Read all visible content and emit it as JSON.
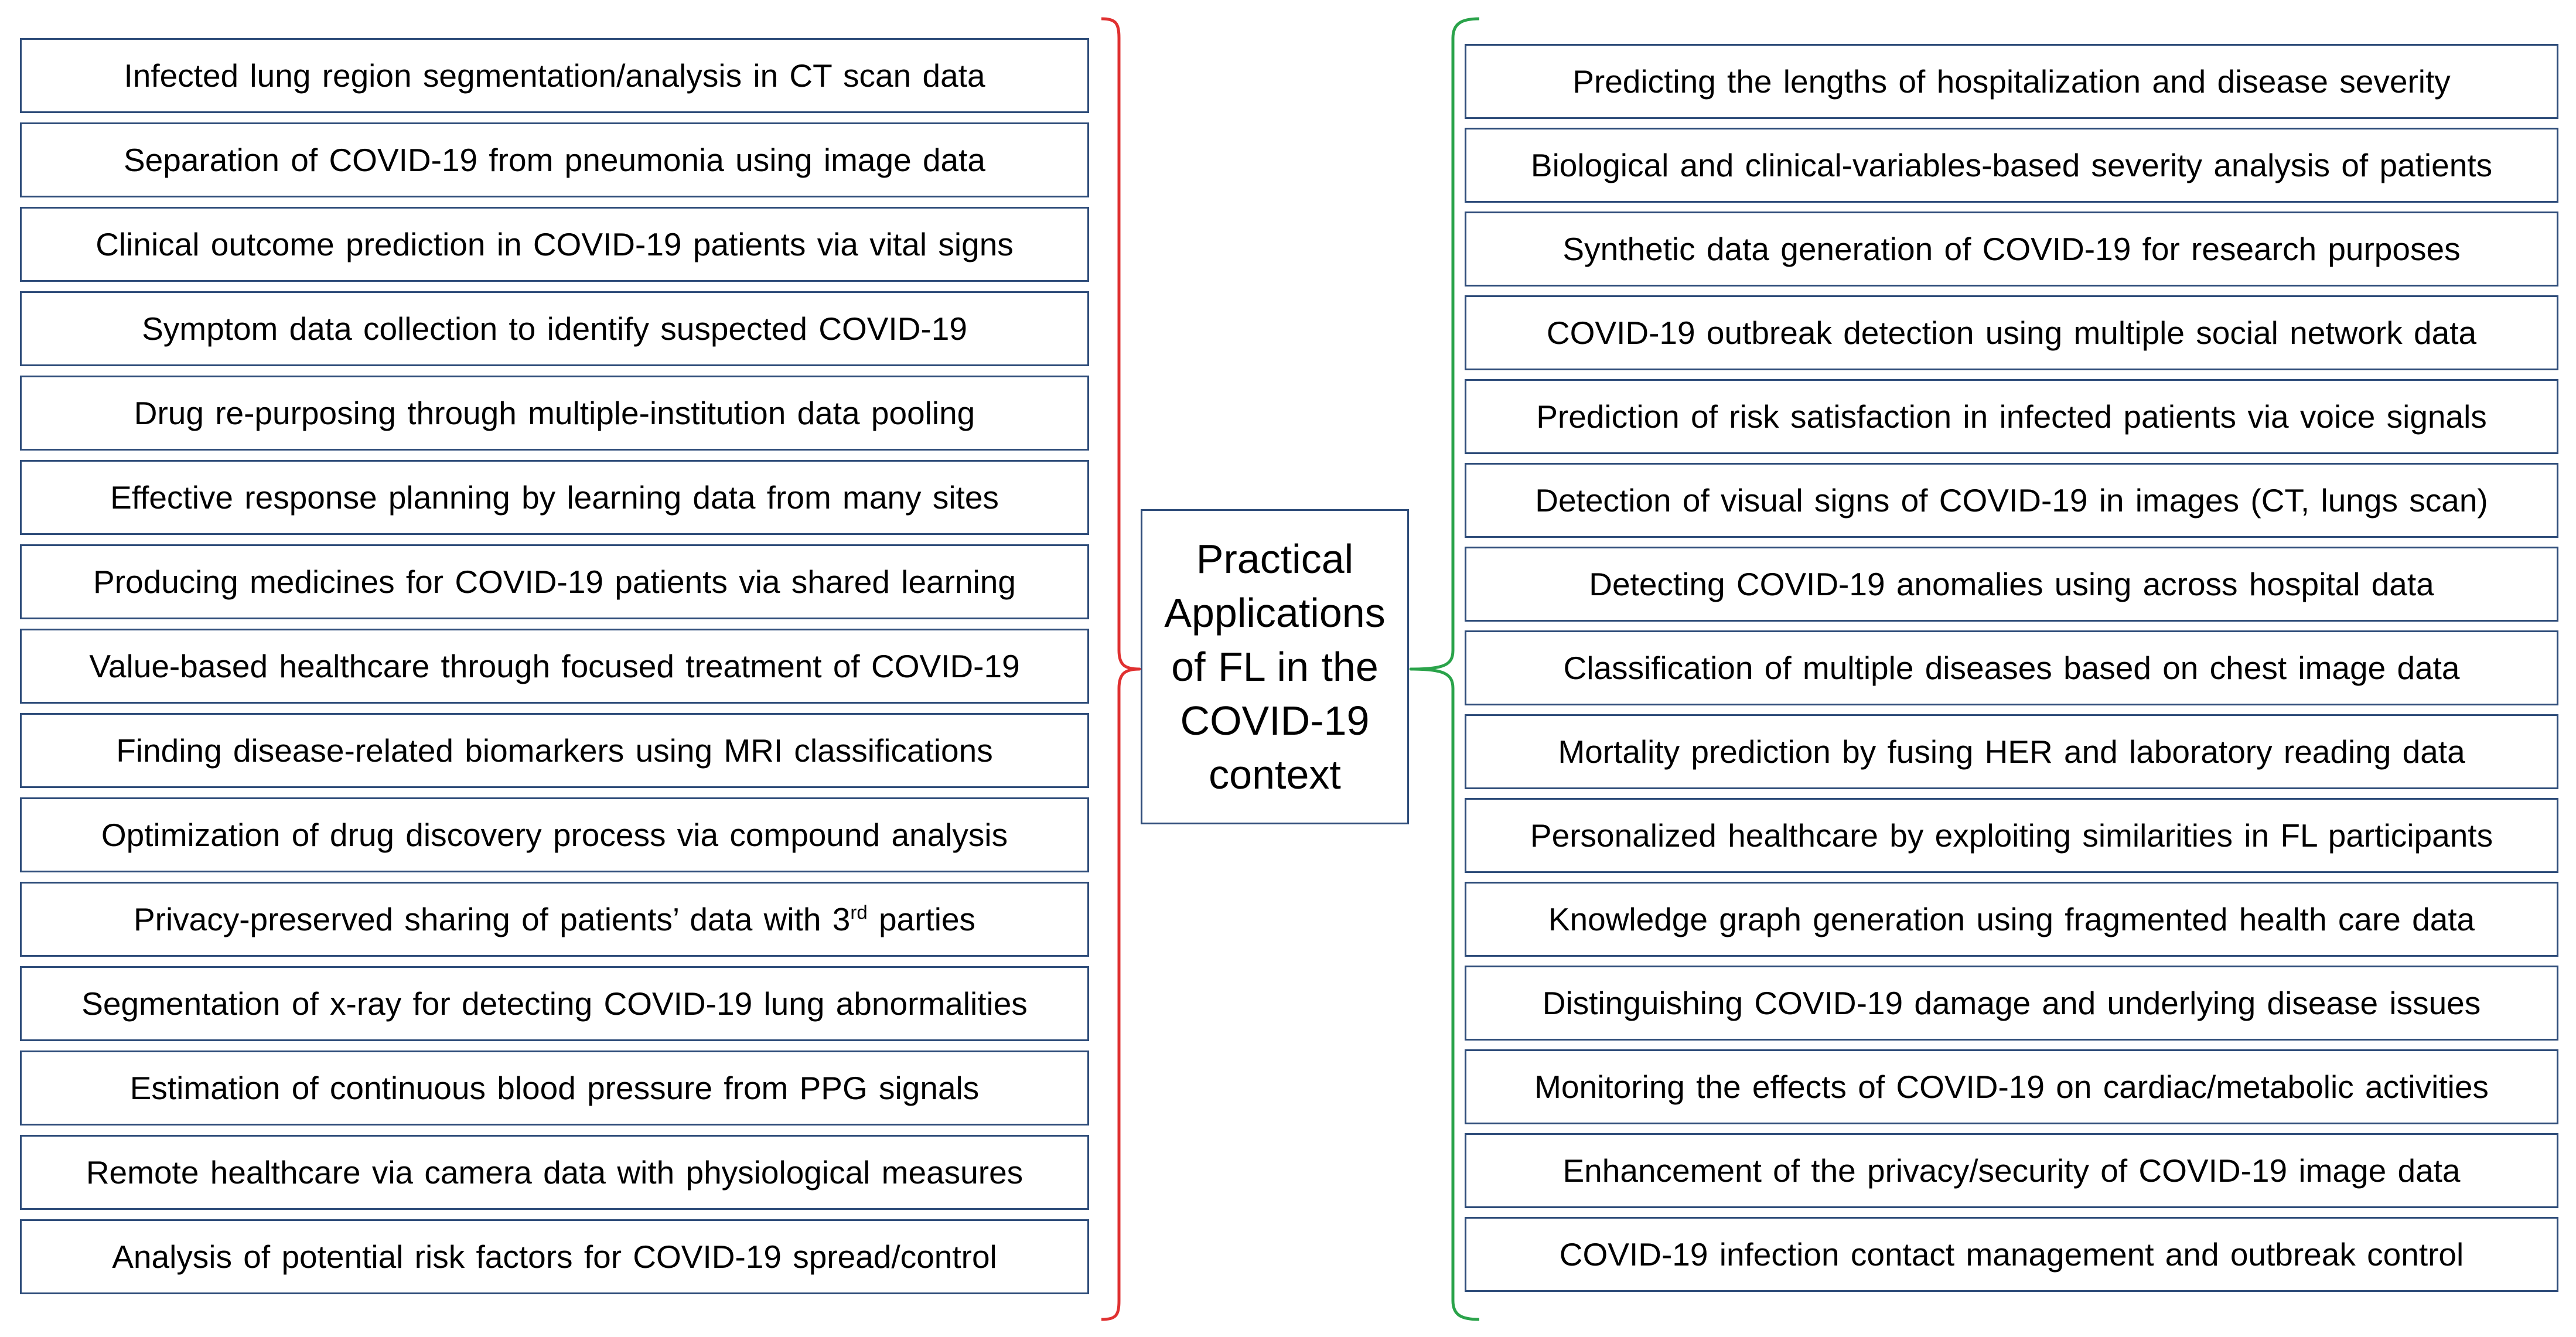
{
  "center": {
    "label": "Practical\nApplications\nof FL in the\nCOVID-19\ncontext"
  },
  "left_items": [
    "Infected lung region segmentation/analysis in CT scan data",
    "Separation of COVID-19 from pneumonia using image data",
    "Clinical outcome prediction in COVID-19 patients via vital signs",
    "Symptom data collection to identify suspected COVID-19",
    "Drug re-purposing through multiple-institution data pooling",
    "Effective response planning by learning data from many sites",
    "Producing medicines for COVID-19 patients via shared learning",
    "Value-based healthcare through focused treatment of COVID-19",
    "Finding disease-related biomarkers using MRI classifications",
    "Optimization of drug discovery process via compound analysis",
    "Privacy-preserved sharing of patients’ data with 3rd parties",
    "Segmentation of x-ray for detecting COVID-19 lung abnormalities",
    "Estimation of continuous blood pressure from PPG signals",
    "Remote healthcare via camera data with physiological measures",
    "Analysis of potential risk factors for COVID-19 spread/control"
  ],
  "privacy_item": {
    "prefix": "Privacy-preserved sharing of patients’ data with 3",
    "superscript": "rd",
    "suffix": " parties"
  },
  "right_items": [
    "Predicting the lengths of hospitalization and disease severity",
    "Biological and clinical-variables-based severity analysis of patients",
    "Synthetic data generation of COVID-19 for research purposes",
    "COVID-19 outbreak detection using multiple social network data",
    "Prediction of risk satisfaction in infected patients via voice signals",
    "Detection of visual signs of COVID-19 in images (CT, lungs scan)",
    "Detecting COVID-19 anomalies using across hospital data",
    "Classification of multiple diseases based on chest image data",
    "Mortality prediction by fusing HER and laboratory reading data",
    "Personalized healthcare by exploiting similarities in FL participants",
    "Knowledge graph generation using fragmented health care data",
    "Distinguishing COVID-19 damage and underlying disease issues",
    "Monitoring the effects of COVID-19 on cardiac/metabolic activities",
    "Enhancement of the privacy/security of COVID-19 image data",
    "COVID-19 infection contact management and outbreak control"
  ],
  "colors": {
    "box_border": "#2f4d7a",
    "left_bracket": "#e03030",
    "right_bracket": "#2aa34a",
    "text": "#000000"
  }
}
